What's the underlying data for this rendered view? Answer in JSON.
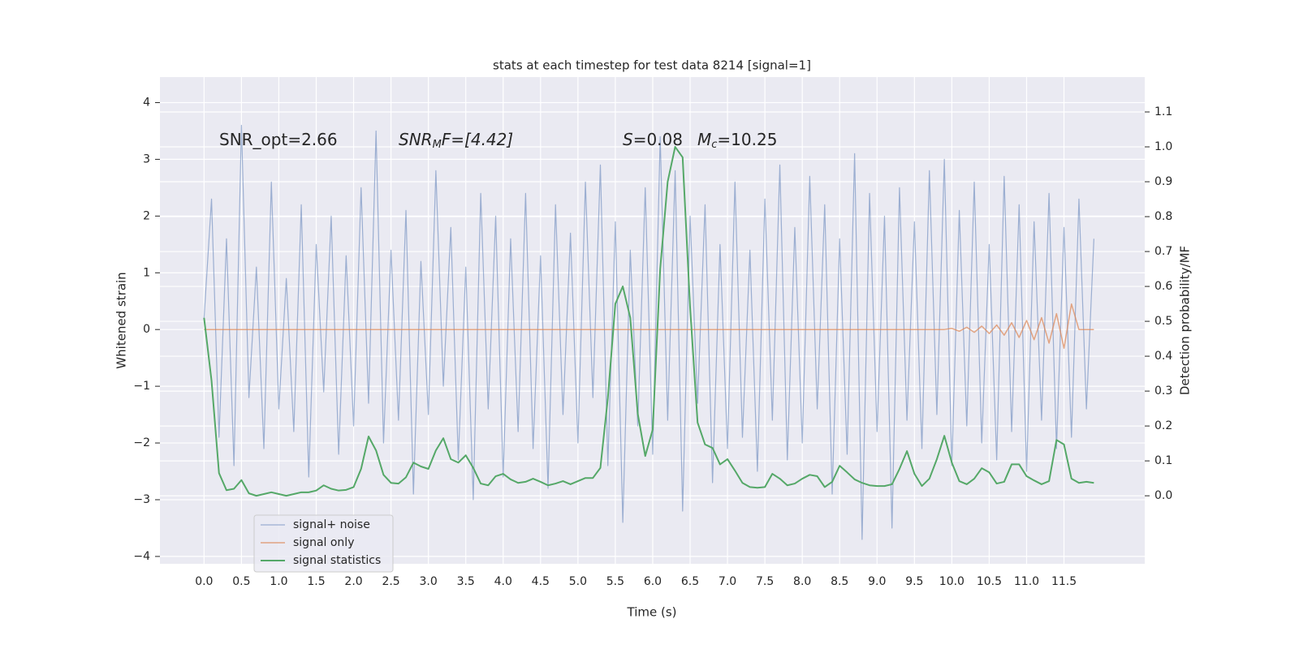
{
  "chart_data": {
    "type": "line",
    "title": "stats at each timestep for test data 8214 [signal=1]",
    "x_label": "Time (s)",
    "y_label": "Whitened strain",
    "y2_label": "Detection probability/MF",
    "annotations": [
      {
        "parts": [
          "SNR_opt=2.66"
        ]
      },
      {
        "parts": [
          "SNR",
          "M",
          "F=[4.42]"
        ]
      },
      {
        "parts": [
          "S",
          "=0.08"
        ]
      },
      {
        "parts": [
          "M",
          "c",
          "=10.25"
        ]
      }
    ],
    "xlim": [
      -0.59,
      12.58
    ],
    "ylim": [
      -4.13,
      4.45
    ],
    "y2lim": [
      -0.195,
      1.2
    ],
    "xticks": [
      {
        "value": 0,
        "label": "0.0"
      },
      {
        "value": 0.5,
        "label": "0.5"
      },
      {
        "value": 1,
        "label": "1.0"
      },
      {
        "value": 1.5,
        "label": "1.5"
      },
      {
        "value": 2,
        "label": "2.0"
      },
      {
        "value": 2.5,
        "label": "2.5"
      },
      {
        "value": 3,
        "label": "3.0"
      },
      {
        "value": 3.5,
        "label": "3.5"
      },
      {
        "value": 4,
        "label": "4.0"
      },
      {
        "value": 4.5,
        "label": "4.5"
      },
      {
        "value": 5,
        "label": "5.0"
      },
      {
        "value": 5.5,
        "label": "5.5"
      },
      {
        "value": 6,
        "label": "6.0"
      },
      {
        "value": 6.5,
        "label": "6.5"
      },
      {
        "value": 7,
        "label": "7.0"
      },
      {
        "value": 7.5,
        "label": "7.5"
      },
      {
        "value": 8,
        "label": "8.0"
      },
      {
        "value": 8.5,
        "label": "8.5"
      },
      {
        "value": 9,
        "label": "9.0"
      },
      {
        "value": 9.5,
        "label": "9.5"
      },
      {
        "value": 10,
        "label": "10.0"
      },
      {
        "value": 10.5,
        "label": "10.5"
      },
      {
        "value": 11,
        "label": "11.0"
      },
      {
        "value": 11.5,
        "label": "11.5"
      }
    ],
    "yticks": [
      {
        "value": -4,
        "label": "−4"
      },
      {
        "value": -3,
        "label": "−3"
      },
      {
        "value": -2,
        "label": "−2"
      },
      {
        "value": -1,
        "label": "−1"
      },
      0,
      1,
      2,
      3,
      4
    ],
    "y2ticks": [
      {
        "value": 0,
        "label": "0.0"
      },
      {
        "value": 0.1,
        "label": "0.1"
      },
      {
        "value": 0.2,
        "label": "0.2"
      },
      {
        "value": 0.3,
        "label": "0.3"
      },
      {
        "value": 0.4,
        "label": "0.4"
      },
      {
        "value": 0.5,
        "label": "0.5"
      },
      {
        "value": 0.6,
        "label": "0.6"
      },
      {
        "value": 0.7,
        "label": "0.7"
      },
      {
        "value": 0.8,
        "label": "0.8"
      },
      {
        "value": 0.9,
        "label": "0.9"
      },
      {
        "value": 1,
        "label": "1.0"
      },
      {
        "value": 1.1,
        "label": "1.1"
      }
    ],
    "grid": true,
    "legend": "lower left",
    "x": [
      0,
      0.1,
      0.2,
      0.3,
      0.4,
      0.5,
      0.6,
      0.7,
      0.8,
      0.9,
      1,
      1.1,
      1.2,
      1.3,
      1.4,
      1.5,
      1.6,
      1.7,
      1.8,
      1.9,
      2,
      2.1,
      2.2,
      2.3,
      2.4,
      2.5,
      2.6,
      2.7,
      2.8,
      2.9,
      3,
      3.1,
      3.2,
      3.3,
      3.4,
      3.5,
      3.6,
      3.7,
      3.8,
      3.9,
      4,
      4.1,
      4.2,
      4.3,
      4.4,
      4.5,
      4.6,
      4.7,
      4.8,
      4.9,
      5,
      5.1,
      5.2,
      5.3,
      5.4,
      5.5,
      5.6,
      5.7,
      5.8,
      5.9,
      6,
      6.1,
      6.2,
      6.3,
      6.4,
      6.5,
      6.6,
      6.7,
      6.8,
      6.9,
      7,
      7.1,
      7.2,
      7.3,
      7.4,
      7.5,
      7.6,
      7.7,
      7.8,
      7.9,
      8,
      8.1,
      8.2,
      8.3,
      8.4,
      8.5,
      8.6,
      8.7,
      8.8,
      8.9,
      9,
      9.1,
      9.2,
      9.3,
      9.4,
      9.5,
      9.6,
      9.7,
      9.8,
      9.9,
      10,
      10.1,
      10.2,
      10.3,
      10.4,
      10.5,
      10.6,
      10.7,
      10.8,
      10.9,
      11,
      11.1,
      11.2,
      11.3,
      11.4,
      11.5,
      11.6,
      11.7,
      11.8,
      11.9
    ],
    "series": [
      {
        "name": "signal+ noise",
        "color": "#4c72b0",
        "values": [
          0.2,
          2.3,
          -1.9,
          1.6,
          -2.4,
          3.6,
          -1.2,
          1.1,
          -2.1,
          2.6,
          -1.4,
          0.9,
          -1.8,
          2.2,
          -2.6,
          1.5,
          -1.1,
          2.0,
          -2.2,
          1.3,
          -1.7,
          2.5,
          -1.3,
          3.5,
          -2.0,
          1.4,
          -1.6,
          2.1,
          -2.9,
          1.2,
          -1.5,
          2.8,
          -1.0,
          1.8,
          -2.3,
          1.1,
          -3.0,
          2.4,
          -1.4,
          2.0,
          -2.6,
          1.6,
          -1.8,
          2.4,
          -2.1,
          1.3,
          -2.8,
          2.2,
          -1.5,
          1.7,
          -2.0,
          2.6,
          -1.2,
          2.9,
          -2.4,
          1.9,
          -3.4,
          1.4,
          -1.7,
          2.5,
          -2.2,
          3.4,
          -1.6,
          2.8,
          -3.2,
          2.0,
          -1.3,
          2.2,
          -2.7,
          1.5,
          -2.1,
          2.6,
          -1.9,
          1.4,
          -2.5,
          2.3,
          -1.6,
          2.9,
          -2.3,
          1.8,
          -2.0,
          2.7,
          -1.4,
          2.2,
          -2.9,
          1.6,
          -2.2,
          3.1,
          -3.7,
          2.4,
          -1.8,
          2.0,
          -3.5,
          2.5,
          -1.6,
          1.9,
          -2.1,
          2.8,
          -1.5,
          3.0,
          -2.4,
          2.1,
          -1.7,
          2.6,
          -2.0,
          1.5,
          -2.3,
          2.7,
          -1.8,
          2.2,
          -2.5,
          1.9,
          -1.6,
          2.4,
          -2.1,
          1.8,
          -1.9,
          2.3,
          -1.4,
          1.6
        ]
      },
      {
        "name": "signal only",
        "color": "#dd8452",
        "values": [
          0,
          0,
          0,
          0,
          0,
          0,
          0,
          0,
          0,
          0,
          0,
          0,
          0,
          0,
          0,
          0,
          0,
          0,
          0,
          0,
          0,
          0,
          0,
          0,
          0,
          0,
          0,
          0,
          0,
          0,
          0,
          0,
          0,
          0,
          0,
          0,
          0,
          0,
          0,
          0,
          0,
          0,
          0,
          0,
          0,
          0,
          0,
          0,
          0,
          0,
          0,
          0,
          0,
          0,
          0,
          0,
          0,
          0,
          0,
          0,
          0,
          0,
          0,
          0,
          0,
          0,
          0,
          0,
          0,
          0,
          0,
          0,
          0,
          0,
          0,
          0,
          0,
          0,
          0,
          0,
          0,
          0,
          0,
          0,
          0,
          0,
          0,
          0,
          0,
          0,
          0,
          0,
          0,
          0,
          0,
          0,
          0,
          0,
          0,
          0,
          0.02,
          -0.03,
          0.04,
          -0.05,
          0.06,
          -0.07,
          0.08,
          -0.1,
          0.12,
          -0.14,
          0.16,
          -0.18,
          0.21,
          -0.24,
          0.28,
          -0.33,
          0.45,
          0,
          0,
          0
        ]
      },
      {
        "name": "signal statistics",
        "color": "#55a868",
        "axis": "y2",
        "values": [
          0.51,
          0.33,
          0.065,
          0.016,
          0.02,
          0.045,
          0.007,
          0.0,
          0.005,
          0.01,
          0.005,
          0.0,
          0.005,
          0.01,
          0.01,
          0.015,
          0.03,
          0.02,
          0.015,
          0.017,
          0.025,
          0.077,
          0.17,
          0.13,
          0.06,
          0.037,
          0.035,
          0.053,
          0.095,
          0.084,
          0.077,
          0.13,
          0.165,
          0.105,
          0.095,
          0.116,
          0.08,
          0.035,
          0.03,
          0.056,
          0.063,
          0.047,
          0.037,
          0.04,
          0.049,
          0.04,
          0.03,
          0.035,
          0.042,
          0.033,
          0.042,
          0.051,
          0.051,
          0.08,
          0.28,
          0.55,
          0.6,
          0.51,
          0.235,
          0.114,
          0.19,
          0.65,
          0.9,
          1.0,
          0.97,
          0.54,
          0.21,
          0.147,
          0.137,
          0.09,
          0.105,
          0.072,
          0.037,
          0.025,
          0.023,
          0.025,
          0.063,
          0.049,
          0.03,
          0.035,
          0.049,
          0.06,
          0.056,
          0.025,
          0.04,
          0.086,
          0.067,
          0.047,
          0.037,
          0.03,
          0.028,
          0.028,
          0.033,
          0.077,
          0.128,
          0.063,
          0.028,
          0.049,
          0.105,
          0.172,
          0.095,
          0.042,
          0.033,
          0.049,
          0.079,
          0.067,
          0.035,
          0.04,
          0.09,
          0.09,
          0.056,
          0.044,
          0.033,
          0.042,
          0.16,
          0.147,
          0.049,
          0.037,
          0.04,
          0.037
        ]
      }
    ]
  }
}
